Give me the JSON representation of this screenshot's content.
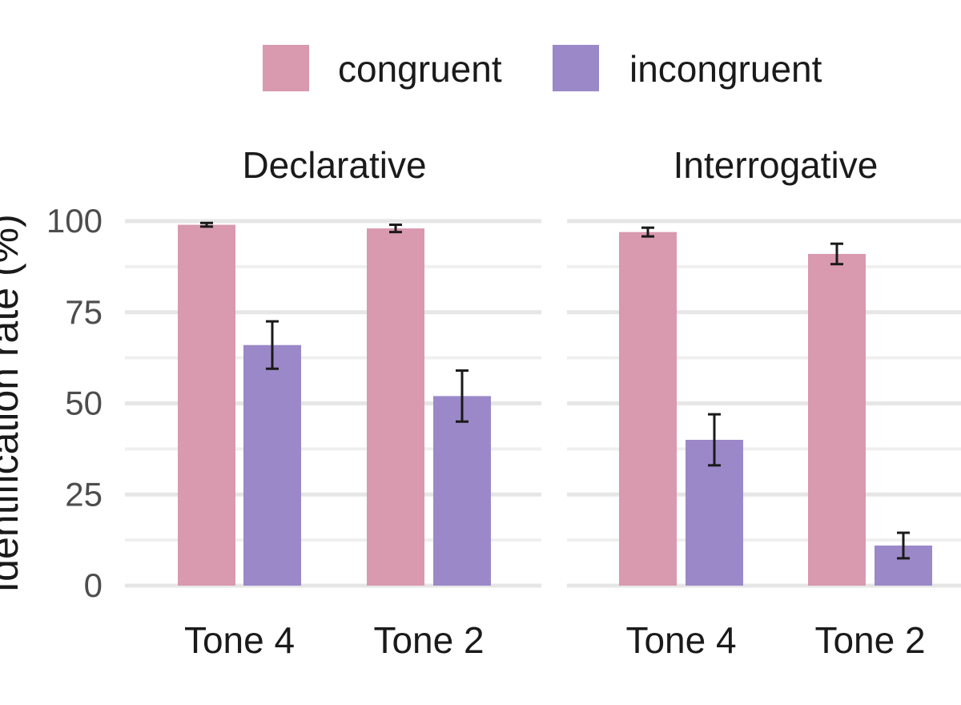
{
  "chart_data": {
    "type": "bar",
    "ylabel": "Identification rate (%)",
    "ylim": [
      0,
      100
    ],
    "yticks": [
      0,
      25,
      50,
      75,
      100
    ],
    "grid": true,
    "legend": {
      "placement": "top",
      "entries": [
        "congruent",
        "incongruent"
      ]
    },
    "colors": {
      "congruent": "#d999ae",
      "incongruent": "#9b88c8"
    },
    "facets": [
      {
        "title": "Declarative",
        "categories": [
          "Tone 4",
          "Tone 2"
        ],
        "series": [
          {
            "name": "congruent",
            "values": [
              99,
              98
            ],
            "error": [
              0.5,
              1
            ]
          },
          {
            "name": "incongruent",
            "values": [
              66,
              52
            ],
            "error": [
              6.5,
              7
            ]
          }
        ]
      },
      {
        "title": "Interrogative",
        "categories": [
          "Tone 4",
          "Tone 2"
        ],
        "series": [
          {
            "name": "congruent",
            "values": [
              97,
              91
            ],
            "error": [
              1.2,
              2.8
            ]
          },
          {
            "name": "incongruent",
            "values": [
              40,
              11
            ],
            "error": [
              7,
              3.5
            ]
          }
        ]
      }
    ]
  }
}
